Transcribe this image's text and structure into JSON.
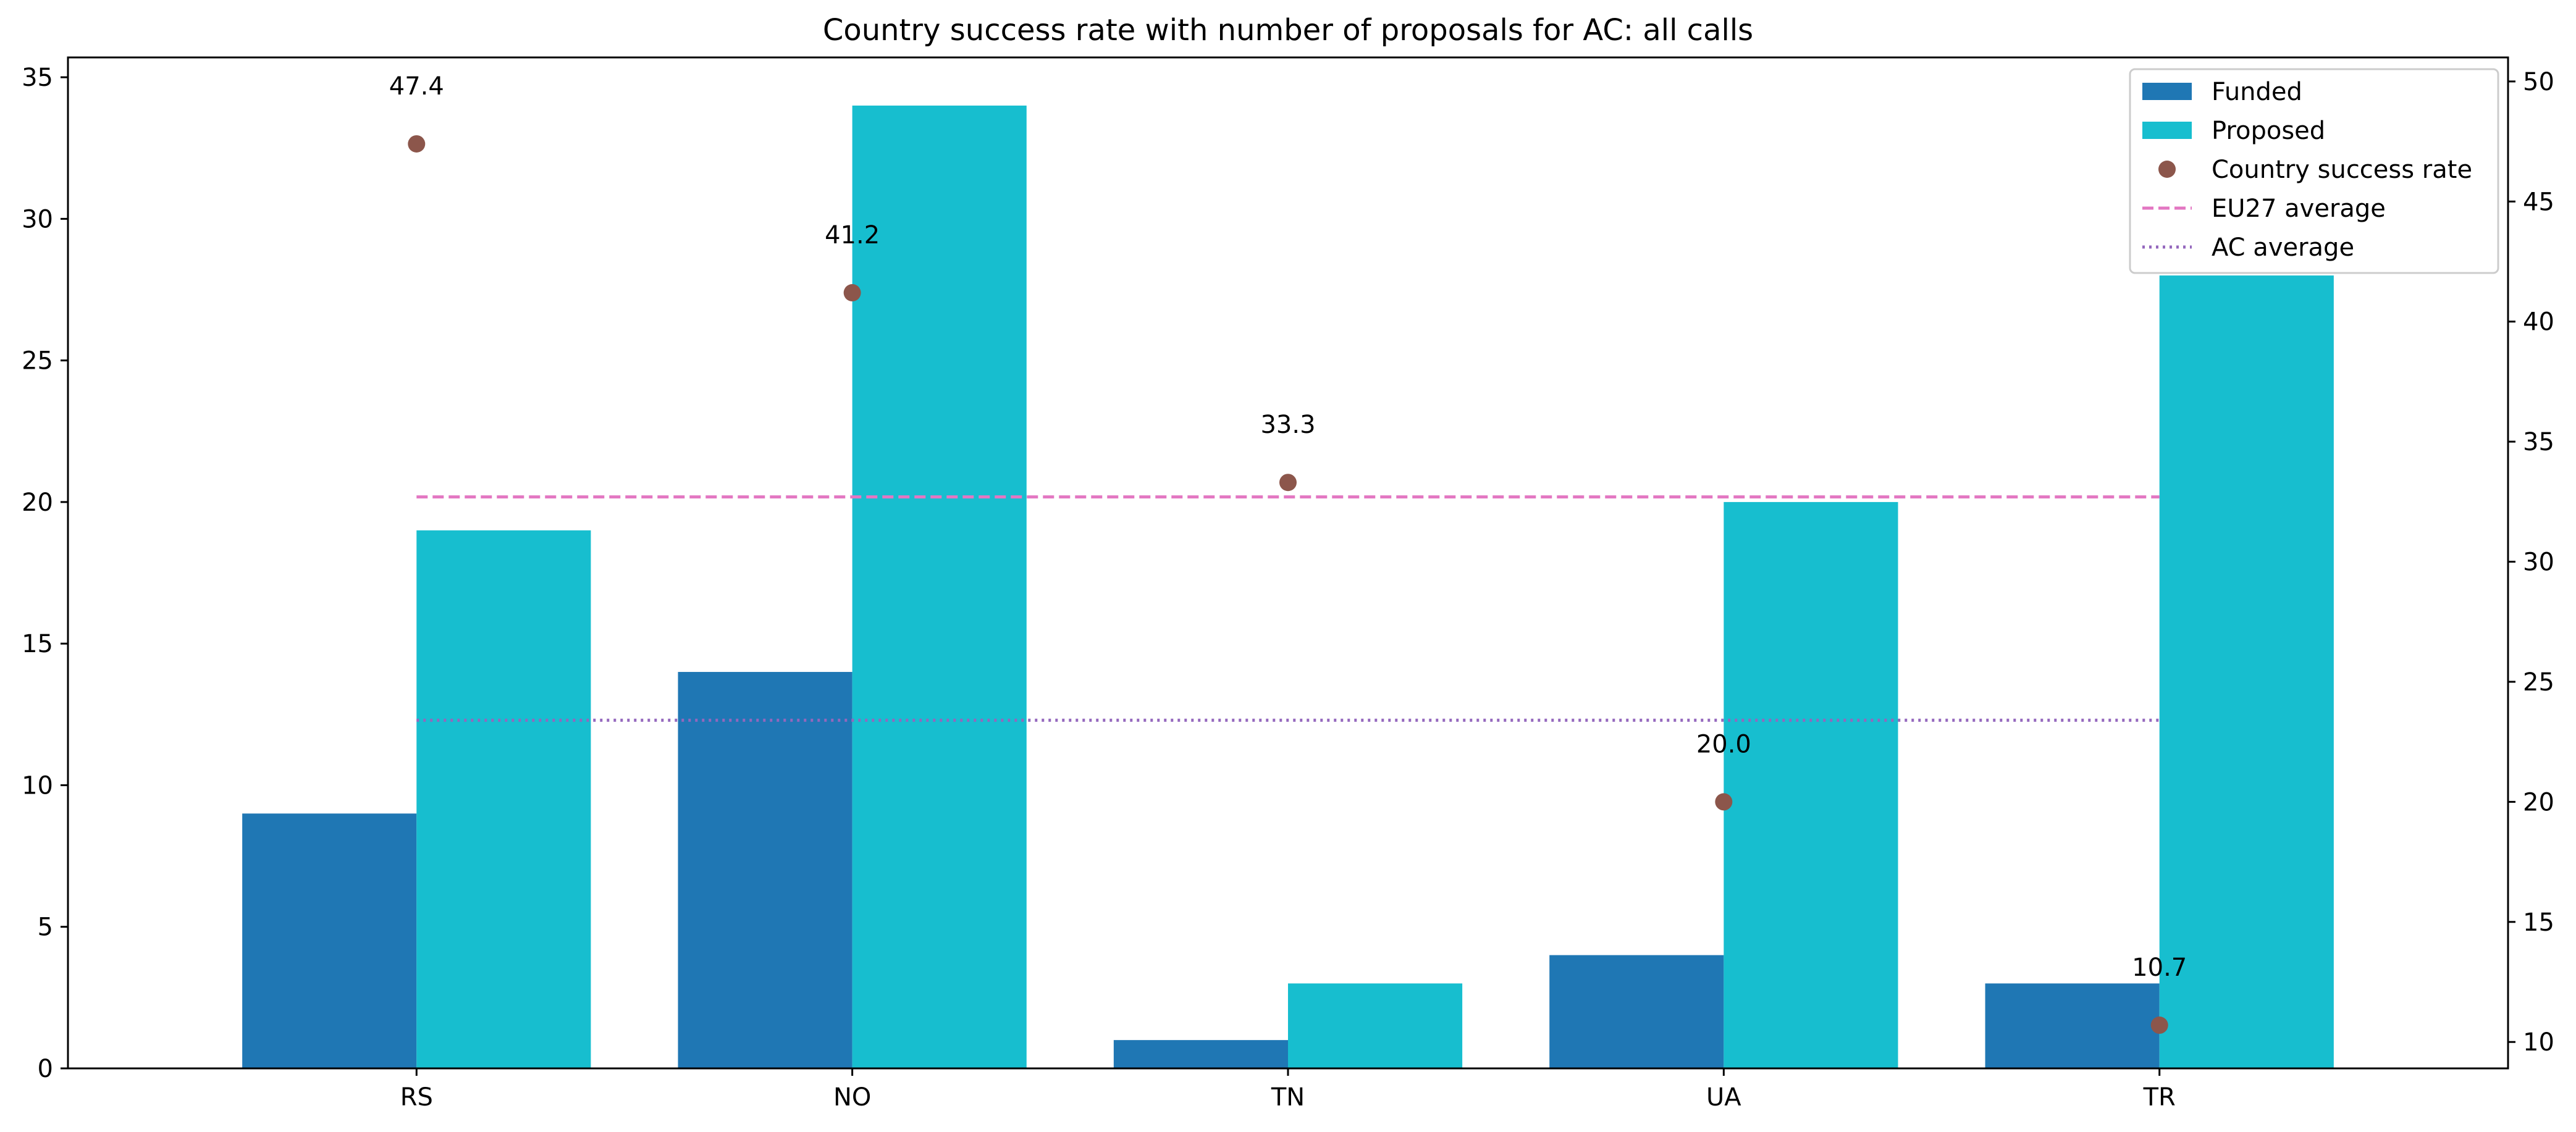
{
  "chart_data": {
    "type": "bar",
    "title": "Country success rate with number of proposals for AC: all calls",
    "categories": [
      "RS",
      "NO",
      "TN",
      "UA",
      "TR"
    ],
    "series": [
      {
        "name": "Funded",
        "values": [
          9,
          14,
          1,
          4,
          3
        ],
        "color": "#1f77b4",
        "axis": "left"
      },
      {
        "name": "Proposed",
        "values": [
          19,
          34,
          3,
          20,
          28
        ],
        "color": "#17becf",
        "axis": "left"
      }
    ],
    "success_rate": {
      "name": "Country success rate",
      "values": [
        47.4,
        41.2,
        33.3,
        20.0,
        10.7
      ],
      "labels": [
        "47.4",
        "41.2",
        "33.3",
        "20.0",
        "10.7"
      ],
      "color": "#8c564b",
      "axis": "right"
    },
    "reference_lines": [
      {
        "name": "EU27 average",
        "value": 32.7,
        "style": "dashed",
        "color": "#e377c2",
        "axis": "right"
      },
      {
        "name": "AC average",
        "value": 23.4,
        "style": "dotted",
        "color": "#9467bd",
        "axis": "right"
      }
    ],
    "left_axis": {
      "ylim": [
        0,
        35.7
      ],
      "ticks": [
        0,
        5,
        10,
        15,
        20,
        25,
        30,
        35
      ],
      "tick_labels": [
        "0",
        "5",
        "10",
        "15",
        "20",
        "25",
        "30",
        "35"
      ]
    },
    "right_axis": {
      "ylim": [
        8.9,
        51.0
      ],
      "ticks": [
        10,
        15,
        20,
        25,
        30,
        35,
        40,
        45,
        50
      ],
      "tick_labels": [
        "10",
        "15",
        "20",
        "25",
        "30",
        "35",
        "40",
        "45",
        "50"
      ]
    },
    "xlabel": "",
    "ylabel": "",
    "grid": false,
    "legend": {
      "position": "top-right",
      "entries": [
        {
          "label": "Funded",
          "kind": "patch",
          "color": "#1f77b4"
        },
        {
          "label": "Proposed",
          "kind": "patch",
          "color": "#17becf"
        },
        {
          "label": "Country success rate",
          "kind": "marker",
          "color": "#8c564b"
        },
        {
          "label": "EU27 average",
          "kind": "dashed",
          "color": "#e377c2"
        },
        {
          "label": "AC average",
          "kind": "dotted",
          "color": "#9467bd"
        }
      ]
    }
  }
}
